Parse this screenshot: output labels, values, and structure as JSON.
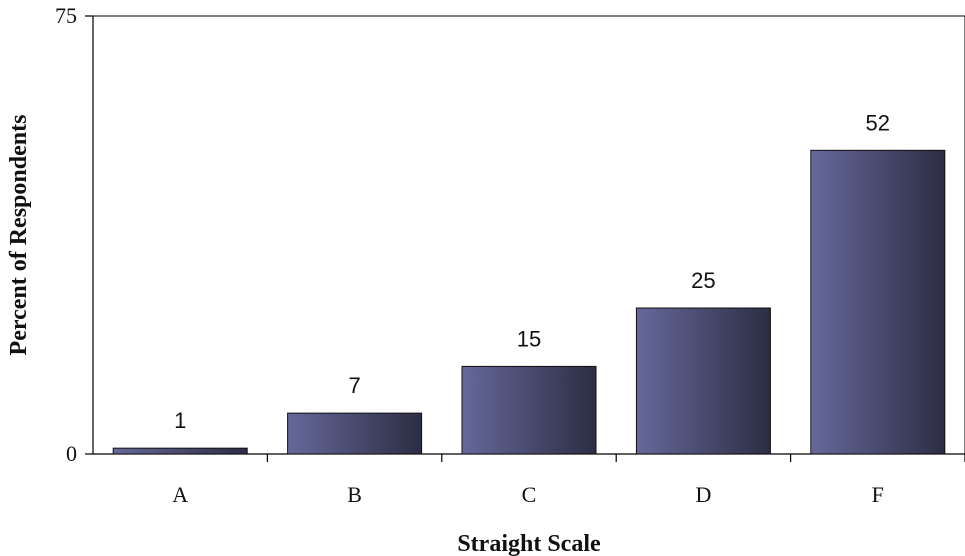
{
  "chart_data": {
    "type": "bar",
    "categories": [
      "A",
      "B",
      "C",
      "D",
      "F"
    ],
    "values": [
      1,
      7,
      15,
      25,
      52
    ],
    "data_labels": [
      "1",
      "7",
      "15",
      "25",
      "52"
    ],
    "title": "",
    "xlabel": "Straight Scale",
    "ylabel": "Percent of Respondents",
    "ylim": [
      0,
      75
    ],
    "y_ticks": [
      "0",
      "75"
    ],
    "grid": false,
    "legend": "none",
    "bar_gradient": [
      "#66689a",
      "#2c2d44"
    ]
  }
}
